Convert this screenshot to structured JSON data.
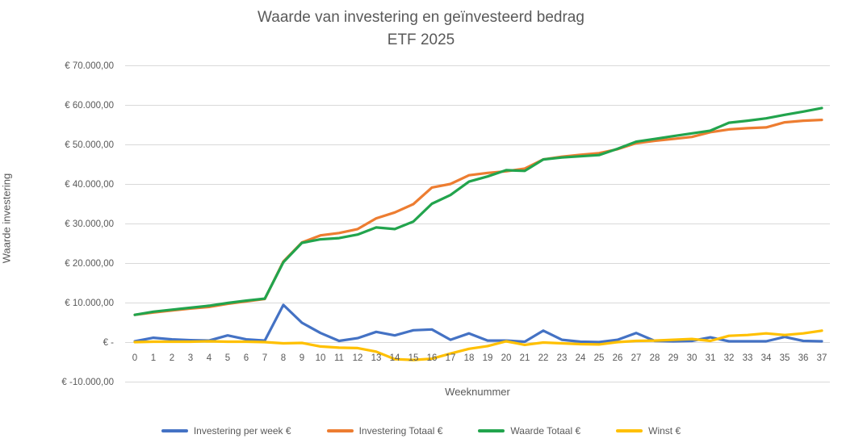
{
  "title": {
    "line1": "Waarde van investering en geïnvesteerd bedrag",
    "line2": "ETF 2025"
  },
  "y_axis": {
    "title": "Waarde investering",
    "ticks": [
      {
        "value": 70000,
        "label": "€ 70.000,00"
      },
      {
        "value": 60000,
        "label": "€ 60.000,00"
      },
      {
        "value": 50000,
        "label": "€ 50.000,00"
      },
      {
        "value": 40000,
        "label": "€ 40.000,00"
      },
      {
        "value": 30000,
        "label": "€ 30.000,00"
      },
      {
        "value": 20000,
        "label": "€ 20.000,00"
      },
      {
        "value": 10000,
        "label": "€ 10.000,00"
      },
      {
        "value": 0,
        "label": "€ -"
      },
      {
        "value": -10000,
        "label": "€ -10.000,00"
      }
    ]
  },
  "x_axis": {
    "title": "Weeknummer"
  },
  "colors": {
    "blue": "#4472C4",
    "orange": "#ED7D31",
    "green": "#22A44D",
    "yellow": "#FFC000",
    "gridline": "#D9D9D9",
    "text": "#595959"
  },
  "chart_data": {
    "type": "line",
    "title": "Waarde van investering en geïnvesteerd bedrag — ETF 2025",
    "xlabel": "Weeknummer",
    "ylabel": "Waarde investering",
    "ylim": [
      -10000,
      70000
    ],
    "grid": "horizontal",
    "legend_position": "bottom",
    "x": [
      0,
      1,
      2,
      3,
      4,
      5,
      6,
      7,
      8,
      9,
      10,
      11,
      12,
      13,
      14,
      15,
      16,
      17,
      18,
      19,
      20,
      21,
      22,
      23,
      24,
      25,
      26,
      27,
      28,
      29,
      30,
      31,
      32,
      33,
      34,
      35,
      36,
      37
    ],
    "series": [
      {
        "name": "Investering per week €",
        "color": "#4472C4",
        "values": [
          300,
          1200,
          800,
          600,
          500,
          1800,
          800,
          500,
          9500,
          5000,
          2400,
          400,
          1100,
          2700,
          1800,
          3100,
          3300,
          700,
          2300,
          500,
          500,
          200,
          3000,
          700,
          200,
          100,
          700,
          2400,
          400,
          300,
          400,
          1300,
          300,
          300,
          300,
          1400,
          400,
          300
        ]
      },
      {
        "name": "Investering Totaal €",
        "color": "#ED7D31",
        "values": [
          7000,
          7600,
          8100,
          8600,
          9000,
          9800,
          10400,
          11000,
          20500,
          25300,
          27100,
          27700,
          28700,
          31400,
          32900,
          35000,
          39200,
          40100,
          42300,
          42900,
          43300,
          44000,
          46300,
          47000,
          47500,
          47900,
          48900,
          50400,
          51000,
          51500,
          52000,
          53200,
          53900,
          54200,
          54400,
          55700,
          56100,
          56300
        ]
      },
      {
        "name": "Waarde Totaal €",
        "color": "#22A44D",
        "values": [
          7000,
          7800,
          8300,
          8800,
          9300,
          10000,
          10600,
          11100,
          20300,
          25200,
          26100,
          26400,
          27300,
          29100,
          28700,
          30600,
          35100,
          37300,
          40700,
          42000,
          43600,
          43400,
          46300,
          46800,
          47100,
          47400,
          49000,
          50800,
          51500,
          52200,
          52900,
          53600,
          55600,
          56100,
          56700,
          57600,
          58400,
          59300
        ]
      },
      {
        "name": "Winst €",
        "color": "#FFC000",
        "values": [
          100,
          200,
          200,
          200,
          300,
          200,
          200,
          100,
          -200,
          -100,
          -1000,
          -1300,
          -1400,
          -2300,
          -4200,
          -4400,
          -4100,
          -2800,
          -1600,
          -900,
          300,
          -600,
          0,
          -200,
          -400,
          -500,
          100,
          400,
          500,
          700,
          900,
          400,
          1700,
          1900,
          2300,
          1900,
          2300,
          3000
        ]
      }
    ]
  },
  "legend": [
    {
      "label": "Investering per week €",
      "color": "#4472C4"
    },
    {
      "label": "Investering Totaal €",
      "color": "#ED7D31"
    },
    {
      "label": "Waarde Totaal €",
      "color": "#22A44D"
    },
    {
      "label": "Winst €",
      "color": "#FFC000"
    }
  ]
}
